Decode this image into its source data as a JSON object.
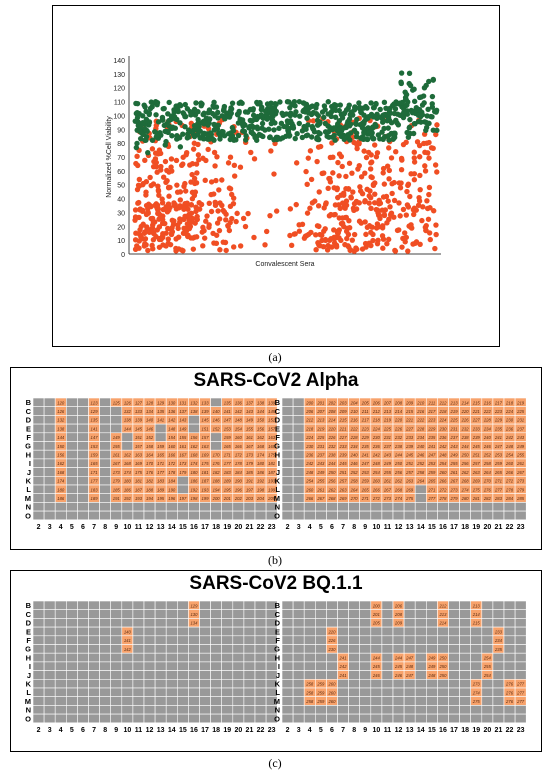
{
  "captions": {
    "a": "(a)",
    "b": "(b)",
    "c": "(c)"
  },
  "colors": {
    "pass": "#1e6b3a",
    "fail": "#f04e23",
    "empty": "#999999",
    "hit": "#f7a26b",
    "grid": "#ffffff"
  },
  "chart_data": [
    {
      "type": "scatter",
      "title": "",
      "xlabel": "Convalescent Sera",
      "ylabel": "Normalized %Cell Viability",
      "ylim": [
        0,
        140
      ],
      "yticks": [
        "0",
        "10",
        "20",
        "30",
        "40",
        "50",
        "60",
        "70",
        "80",
        "90",
        "100",
        "110",
        "120",
        "130",
        "140"
      ],
      "grid": false,
      "series": [
        {
          "color": "green",
          "description_range": [
            75,
            135
          ],
          "count_estimate": 650
        },
        {
          "color": "orange",
          "description_range": [
            0,
            100
          ],
          "count_estimate": 1200
        }
      ],
      "density_profile_x": [
        0.0,
        0.1,
        0.2,
        0.3,
        0.4,
        0.45,
        0.5,
        0.55,
        0.65,
        0.75,
        0.85,
        0.95,
        1.0
      ],
      "density_profile_orange": [
        0.9,
        1.0,
        0.9,
        0.6,
        0.1,
        0.15,
        0.05,
        0.05,
        0.8,
        0.85,
        0.7,
        0.6,
        0.4
      ]
    },
    {
      "type": "heatmap",
      "title": "SARS-CoV2 Alpha",
      "rows": [
        "B",
        "C",
        "D",
        "E",
        "F",
        "G",
        "H",
        "I",
        "J",
        "K",
        "L",
        "M",
        "N",
        "O"
      ],
      "cols": [
        "2",
        "3",
        "4",
        "5",
        "6",
        "7",
        "8",
        "9",
        "10",
        "11",
        "12",
        "13",
        "14",
        "15",
        "16",
        "17",
        "18",
        "19",
        "20",
        "21",
        "22",
        "23"
      ],
      "plates": [
        {
          "start_number": 118,
          "hit_fraction": 0.7,
          "gray_columns": [
            "2",
            "3",
            "5",
            "6",
            "8"
          ],
          "gray_cells": [
            [
              "C",
              "9"
            ],
            [
              "D",
              "9"
            ],
            [
              "E",
              "9"
            ],
            [
              "F",
              "10"
            ],
            [
              "G",
              "10"
            ],
            [
              "E",
              "13"
            ],
            [
              "F",
              "13"
            ],
            [
              "D",
              "16"
            ],
            [
              "E",
              "16"
            ],
            [
              "F",
              "18"
            ],
            [
              "G",
              "18"
            ],
            [
              "K",
              "15"
            ],
            [
              "L",
              "15"
            ],
            [
              "B",
              "18"
            ]
          ]
        },
        {
          "start_number": 198,
          "hit_fraction": 0.95,
          "gray_columns": [
            "2",
            "3"
          ],
          "gray_cells": [
            [
              "L",
              "14"
            ],
            [
              "M",
              "14"
            ]
          ]
        }
      ]
    },
    {
      "type": "heatmap",
      "title": "SARS-CoV2 BQ.1.1",
      "rows": [
        "B",
        "C",
        "D",
        "E",
        "F",
        "G",
        "H",
        "I",
        "J",
        "K",
        "L",
        "M",
        "N",
        "O"
      ],
      "cols": [
        "2",
        "3",
        "4",
        "5",
        "6",
        "7",
        "8",
        "9",
        "10",
        "11",
        "12",
        "13",
        "14",
        "15",
        "16",
        "17",
        "18",
        "19",
        "20",
        "21",
        "22",
        "23"
      ],
      "plates": [
        {
          "hits": [
            {
              "row": "B",
              "col": "16",
              "label": "129"
            },
            {
              "row": "C",
              "col": "16",
              "label": "130"
            },
            {
              "row": "D",
              "col": "16",
              "label": "134"
            },
            {
              "row": "E",
              "col": "10",
              "label": "140"
            },
            {
              "row": "F",
              "col": "10",
              "label": "141"
            },
            {
              "row": "G",
              "col": "10",
              "label": "142"
            }
          ]
        },
        {
          "hits": [
            {
              "row": "B",
              "col": "10",
              "label": "200"
            },
            {
              "row": "C",
              "col": "10",
              "label": "201"
            },
            {
              "row": "D",
              "col": "10",
              "label": "205"
            },
            {
              "row": "B",
              "col": "12",
              "label": "206"
            },
            {
              "row": "C",
              "col": "12",
              "label": "208"
            },
            {
              "row": "D",
              "col": "12",
              "label": "209"
            },
            {
              "row": "B",
              "col": "16",
              "label": "212"
            },
            {
              "row": "C",
              "col": "16",
              "label": "213"
            },
            {
              "row": "D",
              "col": "16",
              "label": "214"
            },
            {
              "row": "B",
              "col": "19",
              "label": "213"
            },
            {
              "row": "C",
              "col": "19",
              "label": "214"
            },
            {
              "row": "D",
              "col": "19",
              "label": "215"
            },
            {
              "row": "E",
              "col": "6",
              "label": "220"
            },
            {
              "row": "F",
              "col": "6",
              "label": "226"
            },
            {
              "row": "G",
              "col": "6",
              "label": "230"
            },
            {
              "row": "E",
              "col": "21",
              "label": "233"
            },
            {
              "row": "F",
              "col": "21",
              "label": "234"
            },
            {
              "row": "G",
              "col": "21",
              "label": "235"
            },
            {
              "row": "H",
              "col": "7",
              "label": "241"
            },
            {
              "row": "I",
              "col": "7",
              "label": "242"
            },
            {
              "row": "J",
              "col": "7",
              "label": "241"
            },
            {
              "row": "H",
              "col": "10",
              "label": "244"
            },
            {
              "row": "I",
              "col": "10",
              "label": "245"
            },
            {
              "row": "J",
              "col": "10",
              "label": "246"
            },
            {
              "row": "H",
              "col": "12",
              "label": "244"
            },
            {
              "row": "I",
              "col": "12",
              "label": "245"
            },
            {
              "row": "J",
              "col": "12",
              "label": "246"
            },
            {
              "row": "H",
              "col": "13",
              "label": "247"
            },
            {
              "row": "I",
              "col": "13",
              "label": "248"
            },
            {
              "row": "J",
              "col": "13",
              "label": "247"
            },
            {
              "row": "H",
              "col": "15",
              "label": "249"
            },
            {
              "row": "I",
              "col": "15",
              "label": "249"
            },
            {
              "row": "J",
              "col": "15",
              "label": "248"
            },
            {
              "row": "H",
              "col": "16",
              "label": "250"
            },
            {
              "row": "I",
              "col": "16",
              "label": "250"
            },
            {
              "row": "J",
              "col": "16",
              "label": "250"
            },
            {
              "row": "H",
              "col": "20",
              "label": "254"
            },
            {
              "row": "I",
              "col": "20",
              "label": "255"
            },
            {
              "row": "J",
              "col": "20",
              "label": "254"
            },
            {
              "row": "K",
              "col": "4",
              "label": "258"
            },
            {
              "row": "L",
              "col": "4",
              "label": "258"
            },
            {
              "row": "M",
              "col": "4",
              "label": "258"
            },
            {
              "row": "K",
              "col": "5",
              "label": "259"
            },
            {
              "row": "L",
              "col": "5",
              "label": "259"
            },
            {
              "row": "M",
              "col": "5",
              "label": "259"
            },
            {
              "row": "K",
              "col": "6",
              "label": "260"
            },
            {
              "row": "L",
              "col": "6",
              "label": "260"
            },
            {
              "row": "M",
              "col": "6",
              "label": "260"
            },
            {
              "row": "K",
              "col": "19",
              "label": "273"
            },
            {
              "row": "L",
              "col": "19",
              "label": "274"
            },
            {
              "row": "M",
              "col": "19",
              "label": "275"
            },
            {
              "row": "K",
              "col": "22",
              "label": "276"
            },
            {
              "row": "L",
              "col": "22",
              "label": "276"
            },
            {
              "row": "M",
              "col": "22",
              "label": "276"
            },
            {
              "row": "K",
              "col": "23",
              "label": "277"
            },
            {
              "row": "L",
              "col": "23",
              "label": "277"
            },
            {
              "row": "M",
              "col": "23",
              "label": "277"
            }
          ]
        }
      ]
    }
  ]
}
